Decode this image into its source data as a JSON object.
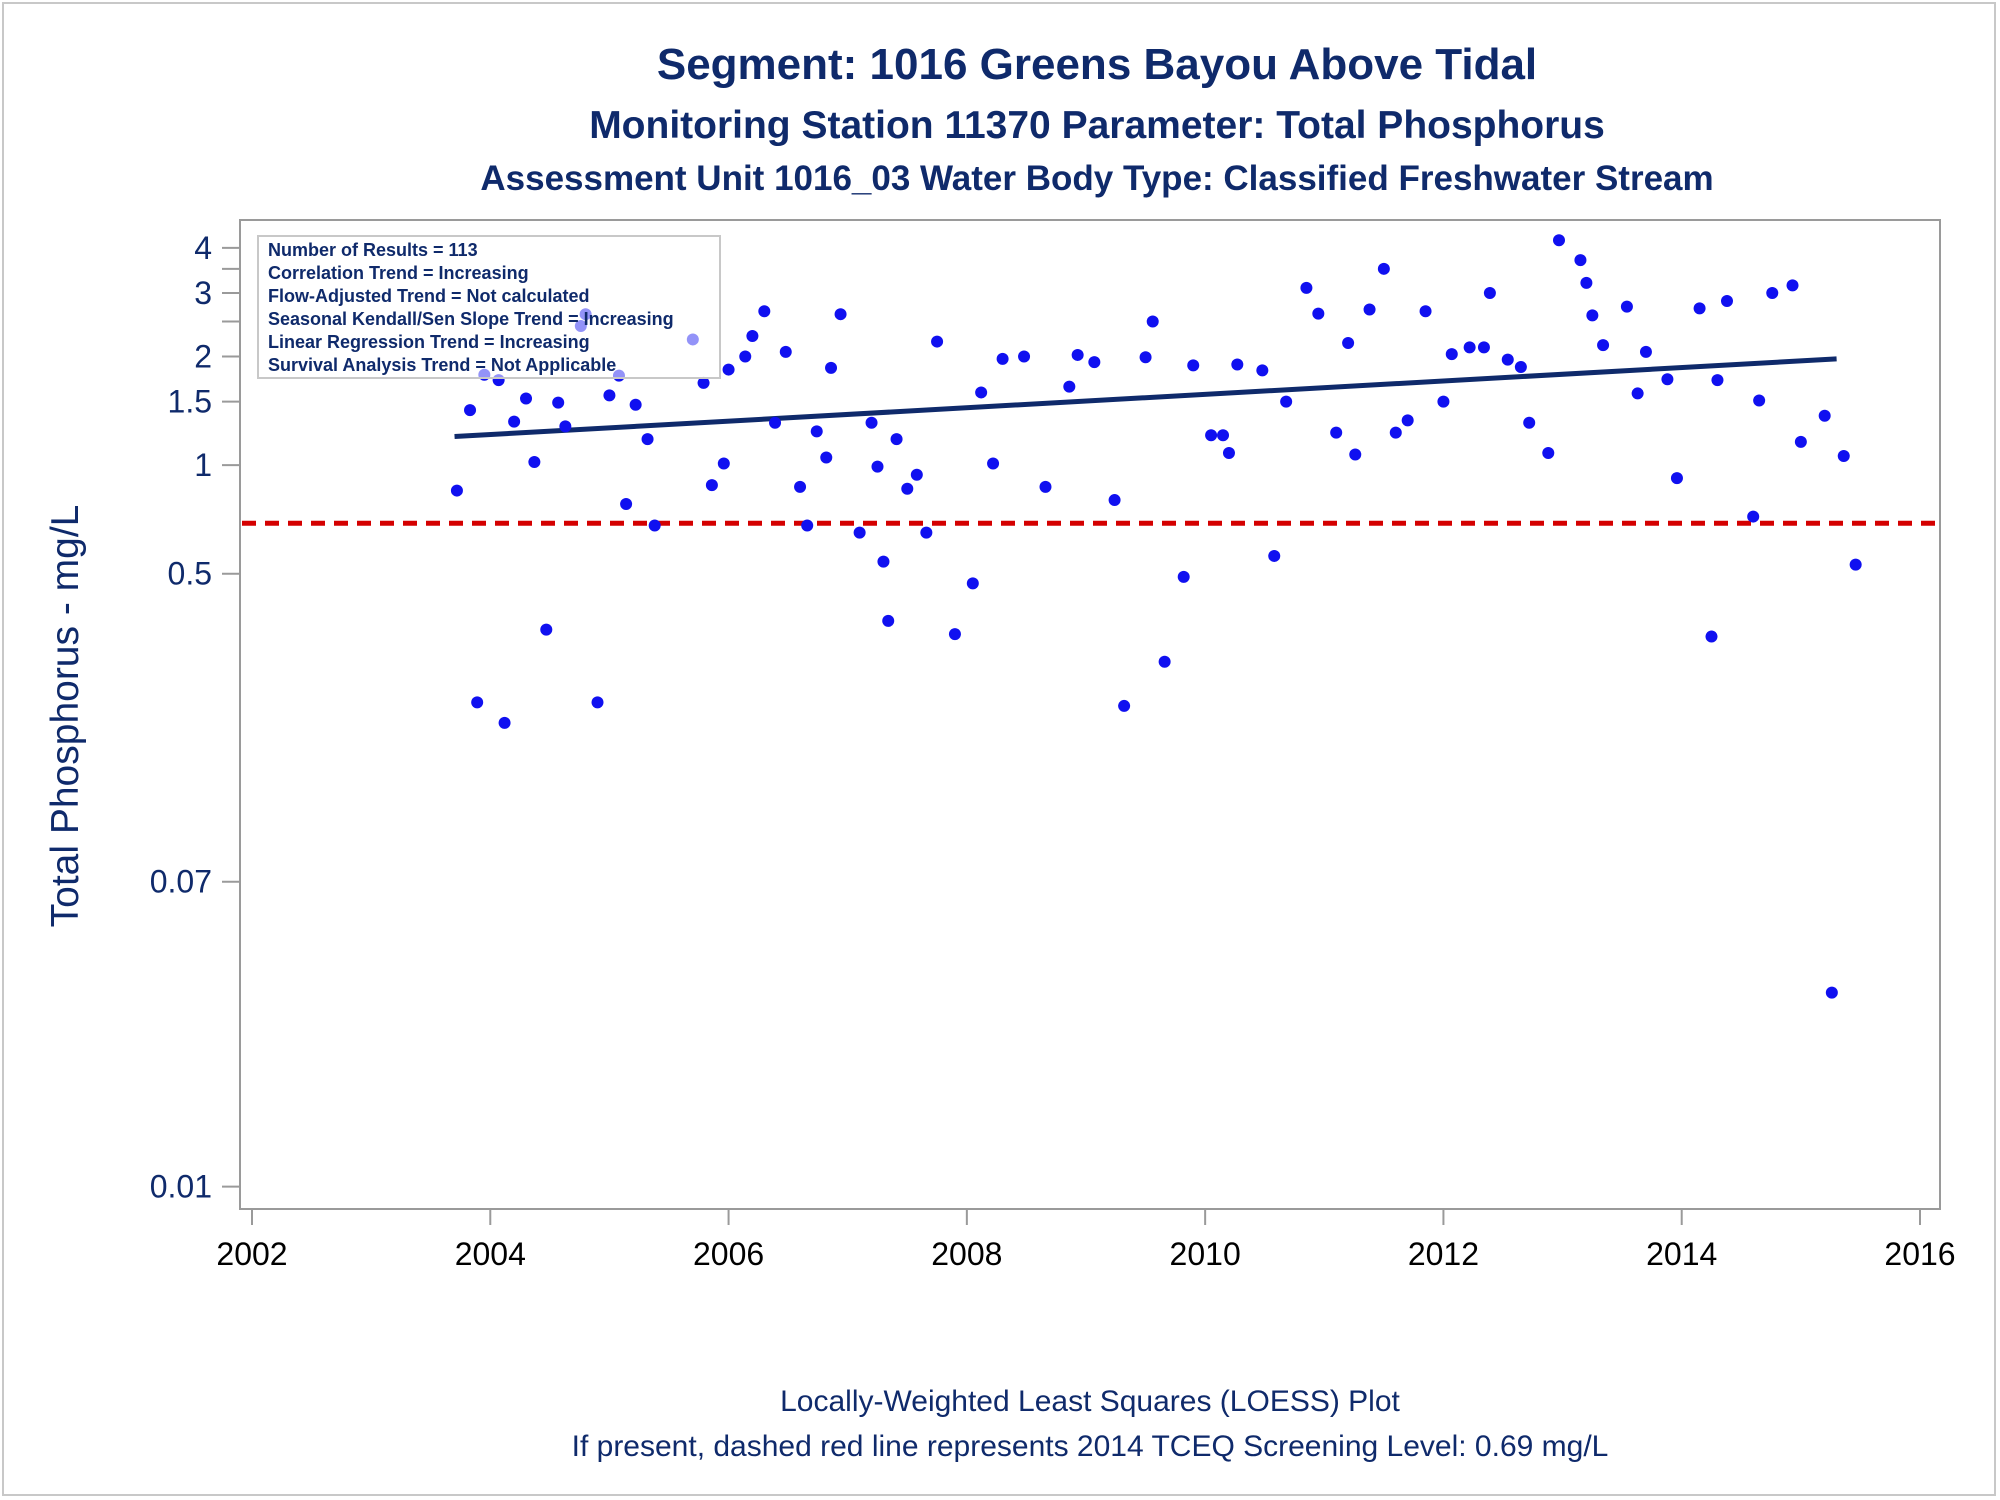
{
  "colors": {
    "text": "#0f2a6b",
    "points": "#1010f0",
    "trend_line": "#0f2a6b",
    "screening_line": "#d40000",
    "axis": "#9a9a9a"
  },
  "chart_data": {
    "type": "scatter",
    "title": "Segment: 1016  Greens Bayou Above Tidal",
    "subtitle": "Monitoring Station 11370 Parameter: Total Phosphorus",
    "subtitle2": "Assessment Unit 1016_03   Water Body Type: Classified Freshwater Stream",
    "xlabel": "",
    "ylabel": "Total Phosphorus - mg/L",
    "y_scale": "log",
    "xlim": [
      2002,
      2016
    ],
    "ylim": [
      0.0093,
      4.6
    ],
    "x_ticks": [
      2002,
      2004,
      2006,
      2008,
      2010,
      2012,
      2014,
      2016
    ],
    "y_ticks_labeled": [
      {
        "value": 0.01,
        "label": "0.01"
      },
      {
        "value": 0.07,
        "label": "0.07"
      },
      {
        "value": 0.5,
        "label": "0.5"
      },
      {
        "value": 1,
        "label": "1"
      },
      {
        "value": 1.5,
        "label": "1.5"
      },
      {
        "value": 2,
        "label": "2"
      },
      {
        "value": 3,
        "label": "3"
      },
      {
        "value": 4,
        "label": "4"
      }
    ],
    "y_ticks_minor": [
      2.5,
      3.5
    ],
    "grid": false,
    "legend_position": "top-left",
    "stats_box": [
      "Number of Results = 113",
      "Correlation Trend = Increasing",
      "Flow-Adjusted Trend = Not calculated",
      "Seasonal Kendall/Sen Slope Trend = Increasing",
      "Linear Regression Trend = Increasing",
      "Survival Analysis Trend = Not Applicable"
    ],
    "screening_level": 0.69,
    "trend_line": {
      "x": [
        2003.7,
        2015.3
      ],
      "y": [
        1.2,
        1.97
      ]
    },
    "points": [
      {
        "x": 2003.72,
        "y": 0.85
      },
      {
        "x": 2003.83,
        "y": 1.42
      },
      {
        "x": 2003.89,
        "y": 0.22
      },
      {
        "x": 2003.95,
        "y": 1.78
      },
      {
        "x": 2004.07,
        "y": 1.72
      },
      {
        "x": 2004.12,
        "y": 0.193
      },
      {
        "x": 2004.2,
        "y": 1.32
      },
      {
        "x": 2004.3,
        "y": 1.53
      },
      {
        "x": 2004.37,
        "y": 1.02
      },
      {
        "x": 2004.47,
        "y": 0.35
      },
      {
        "x": 2004.57,
        "y": 1.49
      },
      {
        "x": 2004.63,
        "y": 1.28
      },
      {
        "x": 2004.76,
        "y": 2.43
      },
      {
        "x": 2004.8,
        "y": 2.62
      },
      {
        "x": 2004.9,
        "y": 0.22
      },
      {
        "x": 2005.0,
        "y": 1.56
      },
      {
        "x": 2005.08,
        "y": 1.77
      },
      {
        "x": 2005.14,
        "y": 0.78
      },
      {
        "x": 2005.22,
        "y": 1.47
      },
      {
        "x": 2005.32,
        "y": 1.18
      },
      {
        "x": 2005.38,
        "y": 0.68
      },
      {
        "x": 2005.7,
        "y": 2.23
      },
      {
        "x": 2005.79,
        "y": 1.69
      },
      {
        "x": 2005.86,
        "y": 0.88
      },
      {
        "x": 2005.96,
        "y": 1.01
      },
      {
        "x": 2006.0,
        "y": 1.84
      },
      {
        "x": 2006.14,
        "y": 2.0
      },
      {
        "x": 2006.2,
        "y": 2.28
      },
      {
        "x": 2006.3,
        "y": 2.67
      },
      {
        "x": 2006.39,
        "y": 1.31
      },
      {
        "x": 2006.48,
        "y": 2.06
      },
      {
        "x": 2006.6,
        "y": 0.87
      },
      {
        "x": 2006.66,
        "y": 0.68
      },
      {
        "x": 2006.74,
        "y": 1.24
      },
      {
        "x": 2006.82,
        "y": 1.05
      },
      {
        "x": 2006.86,
        "y": 1.86
      },
      {
        "x": 2006.94,
        "y": 2.62
      },
      {
        "x": 2007.1,
        "y": 0.65
      },
      {
        "x": 2007.2,
        "y": 1.31
      },
      {
        "x": 2007.25,
        "y": 0.99
      },
      {
        "x": 2007.3,
        "y": 0.54
      },
      {
        "x": 2007.34,
        "y": 0.37
      },
      {
        "x": 2007.41,
        "y": 1.18
      },
      {
        "x": 2007.5,
        "y": 0.86
      },
      {
        "x": 2007.58,
        "y": 0.94
      },
      {
        "x": 2007.66,
        "y": 0.65
      },
      {
        "x": 2007.75,
        "y": 2.2
      },
      {
        "x": 2007.9,
        "y": 0.34
      },
      {
        "x": 2008.05,
        "y": 0.47
      },
      {
        "x": 2008.12,
        "y": 1.59
      },
      {
        "x": 2008.22,
        "y": 1.01
      },
      {
        "x": 2008.3,
        "y": 1.97
      },
      {
        "x": 2008.48,
        "y": 2.0
      },
      {
        "x": 2008.66,
        "y": 0.87
      },
      {
        "x": 2008.86,
        "y": 1.65
      },
      {
        "x": 2008.93,
        "y": 2.02
      },
      {
        "x": 2009.07,
        "y": 1.93
      },
      {
        "x": 2009.24,
        "y": 0.8
      },
      {
        "x": 2009.32,
        "y": 0.215
      },
      {
        "x": 2009.5,
        "y": 1.99
      },
      {
        "x": 2009.56,
        "y": 2.5
      },
      {
        "x": 2009.66,
        "y": 0.285
      },
      {
        "x": 2009.82,
        "y": 0.49
      },
      {
        "x": 2009.9,
        "y": 1.89
      },
      {
        "x": 2010.05,
        "y": 1.21
      },
      {
        "x": 2010.15,
        "y": 1.21
      },
      {
        "x": 2010.2,
        "y": 1.08
      },
      {
        "x": 2010.27,
        "y": 1.9
      },
      {
        "x": 2010.48,
        "y": 1.83
      },
      {
        "x": 2010.58,
        "y": 0.56
      },
      {
        "x": 2010.68,
        "y": 1.5
      },
      {
        "x": 2010.85,
        "y": 3.1
      },
      {
        "x": 2010.95,
        "y": 2.63
      },
      {
        "x": 2011.1,
        "y": 1.23
      },
      {
        "x": 2011.2,
        "y": 2.18
      },
      {
        "x": 2011.26,
        "y": 1.07
      },
      {
        "x": 2011.38,
        "y": 2.7
      },
      {
        "x": 2011.5,
        "y": 3.5
      },
      {
        "x": 2011.6,
        "y": 1.23
      },
      {
        "x": 2011.7,
        "y": 1.33
      },
      {
        "x": 2011.85,
        "y": 2.67
      },
      {
        "x": 2012.0,
        "y": 1.5
      },
      {
        "x": 2012.07,
        "y": 2.03
      },
      {
        "x": 2012.22,
        "y": 2.12
      },
      {
        "x": 2012.34,
        "y": 2.12
      },
      {
        "x": 2012.39,
        "y": 3.0
      },
      {
        "x": 2012.54,
        "y": 1.96
      },
      {
        "x": 2012.65,
        "y": 1.87
      },
      {
        "x": 2012.72,
        "y": 1.31
      },
      {
        "x": 2012.88,
        "y": 1.08
      },
      {
        "x": 2012.97,
        "y": 4.2
      },
      {
        "x": 2013.15,
        "y": 3.7
      },
      {
        "x": 2013.2,
        "y": 3.2
      },
      {
        "x": 2013.25,
        "y": 2.6
      },
      {
        "x": 2013.34,
        "y": 2.15
      },
      {
        "x": 2013.54,
        "y": 2.75
      },
      {
        "x": 2013.63,
        "y": 1.58
      },
      {
        "x": 2013.7,
        "y": 2.06
      },
      {
        "x": 2013.88,
        "y": 1.73
      },
      {
        "x": 2013.96,
        "y": 0.92
      },
      {
        "x": 2014.15,
        "y": 2.72
      },
      {
        "x": 2014.25,
        "y": 0.335
      },
      {
        "x": 2014.3,
        "y": 1.72
      },
      {
        "x": 2014.38,
        "y": 2.85
      },
      {
        "x": 2014.6,
        "y": 0.72
      },
      {
        "x": 2014.65,
        "y": 1.51
      },
      {
        "x": 2014.76,
        "y": 3.0
      },
      {
        "x": 2014.93,
        "y": 3.15
      },
      {
        "x": 2015.0,
        "y": 1.16
      },
      {
        "x": 2015.2,
        "y": 1.37
      },
      {
        "x": 2015.26,
        "y": 0.0345
      },
      {
        "x": 2015.36,
        "y": 1.06
      },
      {
        "x": 2015.46,
        "y": 0.53
      }
    ],
    "footnote1": "Locally-Weighted Least Squares (LOESS) Plot",
    "footnote2": "If present, dashed red line represents 2014 TCEQ Screening Level: 0.69 mg/L"
  }
}
